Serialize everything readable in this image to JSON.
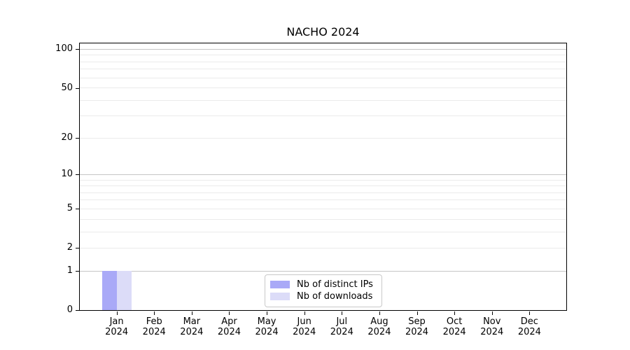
{
  "chart_data": {
    "type": "bar",
    "title": "NACHO 2024",
    "categories": [
      "Jan 2024",
      "Feb 2024",
      "Mar 2024",
      "Apr 2024",
      "May 2024",
      "Jun 2024",
      "Jul 2024",
      "Aug 2024",
      "Sep 2024",
      "Oct 2024",
      "Nov 2024",
      "Dec 2024"
    ],
    "series": [
      {
        "name": "Nb of distinct IPs",
        "color": "#a9a9f7",
        "values": [
          1,
          0,
          0,
          0,
          0,
          0,
          0,
          0,
          0,
          0,
          0,
          0
        ]
      },
      {
        "name": "Nb of downloads",
        "color": "#dcdcf8",
        "values": [
          1,
          0,
          0,
          0,
          0,
          0,
          0,
          0,
          0,
          0,
          0,
          0
        ]
      }
    ],
    "xlabel": "",
    "ylabel": "",
    "yscale": "log1p",
    "ylim": [
      0,
      111
    ],
    "y_major_ticks": [
      0,
      1,
      2,
      5,
      10,
      20,
      50,
      100
    ],
    "y_minor_gridlines": [
      3,
      4,
      6,
      7,
      8,
      9,
      30,
      40,
      60,
      70,
      80,
      90
    ],
    "grid": "horizontal",
    "legend_position": "lower center"
  },
  "colors": {
    "background": "#ffffff",
    "axis": "#000000",
    "grid_major": "#c6c6c6",
    "grid_minor": "#ebebeb",
    "bar_distinct_ips": "#a9a9f7",
    "bar_downloads": "#dcdcf8",
    "legend_border": "#c9c9c9",
    "text": "#000000"
  }
}
